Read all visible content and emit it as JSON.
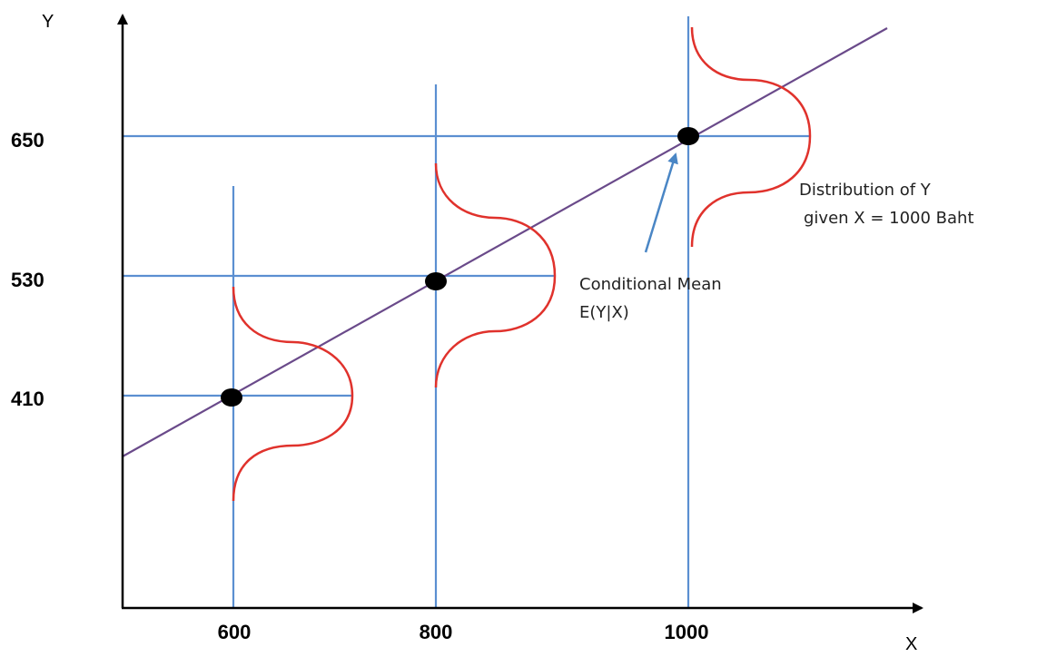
{
  "axes": {
    "x_label": "X",
    "y_label": "Y",
    "x_ticks": [
      "600",
      "800",
      "1000"
    ],
    "y_ticks": [
      "650",
      "530",
      "410"
    ]
  },
  "points": [
    {
      "x": 600,
      "y": 410
    },
    {
      "x": 800,
      "y": 530
    },
    {
      "x": 1000,
      "y": 650
    }
  ],
  "annotations": {
    "conditional_mean_line1": "Conditional Mean",
    "conditional_mean_line2": "E(Y|X)",
    "distribution_line1": "Distribution of Y",
    "distribution_line2": "given X = 1000 Baht"
  },
  "colors": {
    "grid": "#5b8fd1",
    "regression": "#6a4a8a",
    "distribution": "#e0322c",
    "axis": "#000000",
    "arrow": "#4a86c5",
    "point": "#000000"
  }
}
